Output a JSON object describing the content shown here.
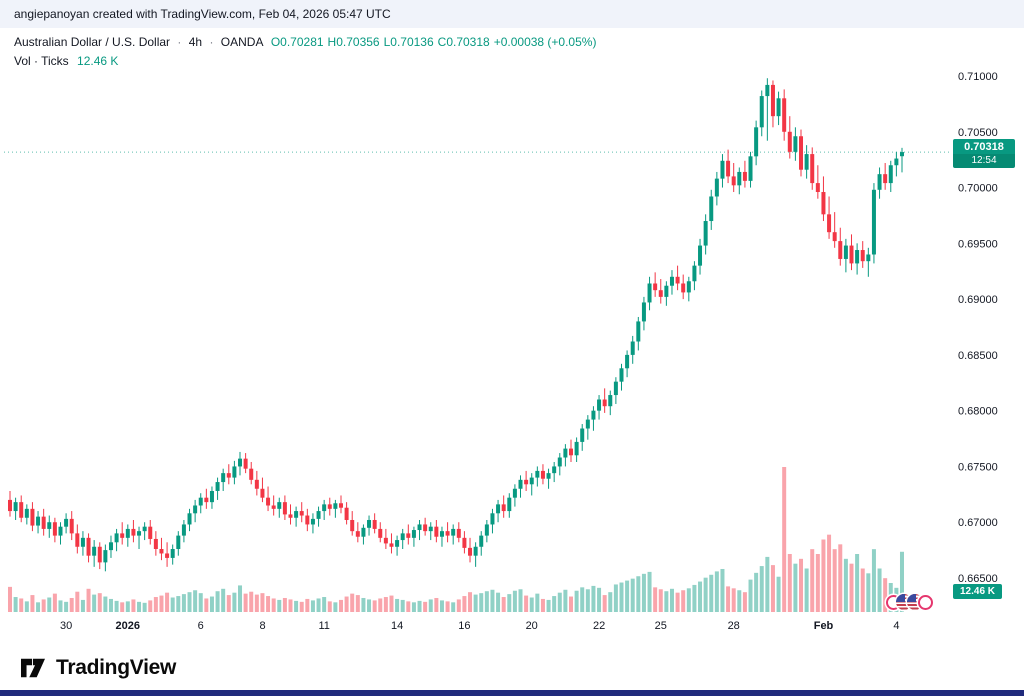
{
  "attribution": "angiepanoyan created with TradingView.com, Feb 04, 2026 05:47 UTC",
  "header": {
    "symbol": "Australian Dollar / U.S. Dollar",
    "separator": "·",
    "interval": "4h",
    "exchange": "OANDA",
    "open": "O0.70281",
    "high": "H0.70356",
    "low": "L0.70136",
    "close": "C0.70318",
    "change": "+0.00038 (+0.05%)",
    "indicator_label": "Vol · Ticks",
    "indicator_value": "12.46 K"
  },
  "badges": {
    "last_price": "0.70318",
    "countdown": "12:54",
    "volume": "12.46 K"
  },
  "footer": {
    "logo_text": "TradingView"
  },
  "icons": {
    "logo_mark": "tradingview-logo-icon",
    "pair_icons": [
      "au-flag-icon",
      "us-flag-icon",
      "us-flag-icon",
      "au-flag-icon"
    ]
  },
  "colors": {
    "up": "#089981",
    "down": "#f23645",
    "vol_up": "rgba(8,153,129,0.45)",
    "vol_down": "rgba(242,54,69,0.45)",
    "accent": "#089981",
    "axis_text": "#131722",
    "topbar_bg": "#f0f3fa",
    "bottom_strip": "#202a7c"
  },
  "chart_data": {
    "type": "candlestick",
    "title": "Australian Dollar / U.S. Dollar",
    "symbol": "AUD/USD",
    "interval": "4h",
    "exchange": "OANDA",
    "last_price": 0.70318,
    "price_line_style": "dotted",
    "legend": "Vol · Ticks 12.46 K",
    "y_axis": {
      "min": 0.665,
      "max": 0.71,
      "ticks": [
        {
          "label": "0.71000",
          "value": 0.71
        },
        {
          "label": "0.70500",
          "value": 0.705
        },
        {
          "label": "0.70000",
          "value": 0.7
        },
        {
          "label": "0.69500",
          "value": 0.695
        },
        {
          "label": "0.69000",
          "value": 0.69
        },
        {
          "label": "0.68500",
          "value": 0.685
        },
        {
          "label": "0.68000",
          "value": 0.68
        },
        {
          "label": "0.67500",
          "value": 0.675
        },
        {
          "label": "0.67000",
          "value": 0.67
        },
        {
          "label": "0.66500",
          "value": 0.665
        }
      ]
    },
    "x_axis": {
      "ticks": [
        {
          "label": "30",
          "i": 10
        },
        {
          "label": "2026",
          "i": 21,
          "major": true
        },
        {
          "label": "6",
          "i": 34
        },
        {
          "label": "8",
          "i": 45
        },
        {
          "label": "11",
          "i": 56
        },
        {
          "label": "14",
          "i": 69
        },
        {
          "label": "16",
          "i": 81
        },
        {
          "label": "20",
          "i": 93
        },
        {
          "label": "22",
          "i": 105
        },
        {
          "label": "25",
          "i": 116
        },
        {
          "label": "28",
          "i": 129
        },
        {
          "label": "Feb",
          "i": 145,
          "major": true
        },
        {
          "label": "4",
          "i": 158
        }
      ]
    },
    "volume_axis": {
      "max": 30,
      "unit": "K",
      "last": "12.46 K"
    },
    "candles": [
      [
        0.672,
        0.6728,
        0.6705,
        0.671,
        5.2
      ],
      [
        0.671,
        0.6722,
        0.6702,
        0.6718,
        3.1
      ],
      [
        0.6718,
        0.6724,
        0.67,
        0.6704,
        2.8
      ],
      [
        0.6704,
        0.6716,
        0.6698,
        0.6712,
        2.2
      ],
      [
        0.6712,
        0.6718,
        0.6692,
        0.6697,
        3.5
      ],
      [
        0.6697,
        0.671,
        0.669,
        0.6705,
        2.0
      ],
      [
        0.6705,
        0.6712,
        0.6688,
        0.6694,
        2.6
      ],
      [
        0.6694,
        0.6706,
        0.6686,
        0.67,
        3.0
      ],
      [
        0.67,
        0.6704,
        0.6682,
        0.6688,
        3.8
      ],
      [
        0.6688,
        0.67,
        0.668,
        0.6696,
        2.4
      ],
      [
        0.6696,
        0.6708,
        0.669,
        0.6703,
        2.1
      ],
      [
        0.6703,
        0.671,
        0.6684,
        0.669,
        2.9
      ],
      [
        0.669,
        0.6698,
        0.6672,
        0.6678,
        4.2
      ],
      [
        0.6678,
        0.6692,
        0.667,
        0.6686,
        2.5
      ],
      [
        0.6686,
        0.669,
        0.6664,
        0.667,
        4.8
      ],
      [
        0.667,
        0.6684,
        0.666,
        0.6678,
        3.6
      ],
      [
        0.6678,
        0.6682,
        0.6658,
        0.6664,
        3.9
      ],
      [
        0.6664,
        0.668,
        0.6656,
        0.6675,
        3.2
      ],
      [
        0.6675,
        0.6688,
        0.6668,
        0.6682,
        2.7
      ],
      [
        0.6682,
        0.6694,
        0.6674,
        0.669,
        2.3
      ],
      [
        0.669,
        0.67,
        0.668,
        0.6686,
        2.0
      ],
      [
        0.6686,
        0.6698,
        0.6678,
        0.6694,
        2.2
      ],
      [
        0.6694,
        0.6702,
        0.6682,
        0.6688,
        2.6
      ],
      [
        0.6688,
        0.6696,
        0.6676,
        0.6692,
        2.1
      ],
      [
        0.6692,
        0.67,
        0.6684,
        0.6696,
        1.9
      ],
      [
        0.6696,
        0.6702,
        0.668,
        0.6685,
        2.4
      ],
      [
        0.6685,
        0.6692,
        0.667,
        0.6676,
        3.1
      ],
      [
        0.6676,
        0.6686,
        0.6666,
        0.6672,
        3.4
      ],
      [
        0.6672,
        0.6682,
        0.666,
        0.6668,
        4.0
      ],
      [
        0.6668,
        0.668,
        0.6662,
        0.6676,
        3.0
      ],
      [
        0.6676,
        0.6692,
        0.667,
        0.6688,
        3.3
      ],
      [
        0.6688,
        0.6702,
        0.6682,
        0.6698,
        3.7
      ],
      [
        0.6698,
        0.6712,
        0.6692,
        0.6708,
        4.1
      ],
      [
        0.6708,
        0.672,
        0.67,
        0.6715,
        4.5
      ],
      [
        0.6715,
        0.6726,
        0.6708,
        0.6722,
        3.9
      ],
      [
        0.6722,
        0.673,
        0.6712,
        0.6718,
        2.8
      ],
      [
        0.6718,
        0.6732,
        0.6712,
        0.6728,
        3.2
      ],
      [
        0.6728,
        0.674,
        0.672,
        0.6736,
        4.3
      ],
      [
        0.6736,
        0.6748,
        0.6728,
        0.6744,
        4.8
      ],
      [
        0.6744,
        0.6752,
        0.6734,
        0.674,
        3.5
      ],
      [
        0.674,
        0.6755,
        0.6734,
        0.675,
        4.0
      ],
      [
        0.675,
        0.6763,
        0.6742,
        0.6757,
        5.5
      ],
      [
        0.6757,
        0.6762,
        0.6744,
        0.6748,
        3.8
      ],
      [
        0.6748,
        0.6754,
        0.6734,
        0.6738,
        4.2
      ],
      [
        0.6738,
        0.6746,
        0.6724,
        0.673,
        3.6
      ],
      [
        0.673,
        0.674,
        0.6718,
        0.6722,
        3.9
      ],
      [
        0.6722,
        0.6732,
        0.671,
        0.6715,
        3.3
      ],
      [
        0.6715,
        0.6724,
        0.6706,
        0.6712,
        2.8
      ],
      [
        0.6712,
        0.6722,
        0.6704,
        0.6718,
        2.5
      ],
      [
        0.6718,
        0.6724,
        0.6702,
        0.6707,
        2.9
      ],
      [
        0.6707,
        0.6716,
        0.6698,
        0.6704,
        2.6
      ],
      [
        0.6704,
        0.6714,
        0.6696,
        0.671,
        2.3
      ],
      [
        0.671,
        0.6718,
        0.67,
        0.6706,
        2.1
      ],
      [
        0.6706,
        0.6712,
        0.6692,
        0.6698,
        2.7
      ],
      [
        0.6698,
        0.6708,
        0.669,
        0.6703,
        2.4
      ],
      [
        0.6703,
        0.6714,
        0.6696,
        0.671,
        2.8
      ],
      [
        0.671,
        0.672,
        0.6702,
        0.6716,
        3.1
      ],
      [
        0.6716,
        0.6722,
        0.6706,
        0.6712,
        2.2
      ],
      [
        0.6712,
        0.672,
        0.6704,
        0.6717,
        2.0
      ],
      [
        0.6717,
        0.6724,
        0.6708,
        0.6713,
        2.5
      ],
      [
        0.6713,
        0.6718,
        0.6698,
        0.6702,
        3.2
      ],
      [
        0.6702,
        0.671,
        0.6688,
        0.6692,
        3.8
      ],
      [
        0.6692,
        0.67,
        0.6682,
        0.6687,
        3.5
      ],
      [
        0.6687,
        0.6698,
        0.668,
        0.6695,
        2.9
      ],
      [
        0.6695,
        0.6706,
        0.6688,
        0.6702,
        2.6
      ],
      [
        0.6702,
        0.6708,
        0.669,
        0.6694,
        2.4
      ],
      [
        0.6694,
        0.67,
        0.6682,
        0.6686,
        2.8
      ],
      [
        0.6686,
        0.6694,
        0.6676,
        0.6681,
        3.1
      ],
      [
        0.6681,
        0.669,
        0.6672,
        0.6678,
        3.4
      ],
      [
        0.6678,
        0.6688,
        0.667,
        0.6684,
        2.7
      ],
      [
        0.6684,
        0.6694,
        0.6676,
        0.669,
        2.5
      ],
      [
        0.669,
        0.6698,
        0.668,
        0.6686,
        2.2
      ],
      [
        0.6686,
        0.6696,
        0.6678,
        0.6693,
        2.0
      ],
      [
        0.6693,
        0.6702,
        0.6684,
        0.6698,
        2.3
      ],
      [
        0.6698,
        0.6704,
        0.6688,
        0.6692,
        2.1
      ],
      [
        0.6692,
        0.67,
        0.6684,
        0.6696,
        2.6
      ],
      [
        0.6696,
        0.6702,
        0.6682,
        0.6687,
        2.9
      ],
      [
        0.6687,
        0.6696,
        0.6678,
        0.6692,
        2.4
      ],
      [
        0.6692,
        0.67,
        0.6682,
        0.6688,
        2.2
      ],
      [
        0.6688,
        0.6698,
        0.668,
        0.6694,
        2.0
      ],
      [
        0.6694,
        0.67,
        0.6682,
        0.6686,
        2.6
      ],
      [
        0.6686,
        0.6692,
        0.6672,
        0.6677,
        3.3
      ],
      [
        0.6677,
        0.6686,
        0.6664,
        0.667,
        4.1
      ],
      [
        0.667,
        0.6682,
        0.666,
        0.6678,
        3.6
      ],
      [
        0.6678,
        0.6692,
        0.667,
        0.6688,
        3.9
      ],
      [
        0.6688,
        0.6702,
        0.6682,
        0.6698,
        4.3
      ],
      [
        0.6698,
        0.6712,
        0.669,
        0.6708,
        4.6
      ],
      [
        0.6708,
        0.672,
        0.67,
        0.6716,
        4.0
      ],
      [
        0.6716,
        0.6724,
        0.6704,
        0.671,
        3.1
      ],
      [
        0.671,
        0.6726,
        0.6704,
        0.6722,
        3.7
      ],
      [
        0.6722,
        0.6734,
        0.6714,
        0.673,
        4.4
      ],
      [
        0.673,
        0.6742,
        0.6722,
        0.6738,
        4.7
      ],
      [
        0.6738,
        0.6746,
        0.6728,
        0.6734,
        3.4
      ],
      [
        0.6734,
        0.6744,
        0.6724,
        0.674,
        3.0
      ],
      [
        0.674,
        0.675,
        0.6732,
        0.6746,
        3.8
      ],
      [
        0.6746,
        0.6752,
        0.6734,
        0.6739,
        2.7
      ],
      [
        0.6739,
        0.6748,
        0.673,
        0.6744,
        2.5
      ],
      [
        0.6744,
        0.6754,
        0.6736,
        0.675,
        3.3
      ],
      [
        0.675,
        0.6762,
        0.6742,
        0.6758,
        4.0
      ],
      [
        0.6758,
        0.677,
        0.675,
        0.6766,
        4.6
      ],
      [
        0.6766,
        0.6774,
        0.6754,
        0.676,
        3.2
      ],
      [
        0.676,
        0.6776,
        0.6754,
        0.6772,
        4.4
      ],
      [
        0.6772,
        0.6788,
        0.6764,
        0.6784,
        5.1
      ],
      [
        0.6784,
        0.6796,
        0.6774,
        0.6792,
        4.7
      ],
      [
        0.6792,
        0.6804,
        0.6782,
        0.68,
        5.4
      ],
      [
        0.68,
        0.6814,
        0.6792,
        0.681,
        5.0
      ],
      [
        0.681,
        0.682,
        0.6798,
        0.6804,
        3.5
      ],
      [
        0.6804,
        0.6818,
        0.6796,
        0.6814,
        4.1
      ],
      [
        0.6814,
        0.683,
        0.6806,
        0.6826,
        5.7
      ],
      [
        0.6826,
        0.6842,
        0.6818,
        0.6838,
        6.1
      ],
      [
        0.6838,
        0.6854,
        0.683,
        0.685,
        6.5
      ],
      [
        0.685,
        0.6867,
        0.6842,
        0.6862,
        6.9
      ],
      [
        0.6862,
        0.6884,
        0.6854,
        0.688,
        7.4
      ],
      [
        0.688,
        0.6902,
        0.6872,
        0.6897,
        7.9
      ],
      [
        0.6897,
        0.692,
        0.689,
        0.6914,
        8.3
      ],
      [
        0.6914,
        0.6924,
        0.6902,
        0.6908,
        5.1
      ],
      [
        0.6908,
        0.6918,
        0.6896,
        0.6902,
        4.7
      ],
      [
        0.6902,
        0.6916,
        0.6894,
        0.6912,
        4.3
      ],
      [
        0.6912,
        0.6926,
        0.6904,
        0.692,
        4.8
      ],
      [
        0.692,
        0.693,
        0.6908,
        0.6914,
        4.0
      ],
      [
        0.6914,
        0.6922,
        0.69,
        0.6906,
        4.5
      ],
      [
        0.6906,
        0.692,
        0.6898,
        0.6916,
        4.9
      ],
      [
        0.6916,
        0.6934,
        0.6908,
        0.693,
        5.6
      ],
      [
        0.693,
        0.6954,
        0.6922,
        0.6948,
        6.3
      ],
      [
        0.6948,
        0.6976,
        0.694,
        0.697,
        7.1
      ],
      [
        0.697,
        0.6998,
        0.6962,
        0.6992,
        7.7
      ],
      [
        0.6992,
        0.7014,
        0.6984,
        0.7008,
        8.4
      ],
      [
        0.7008,
        0.703,
        0.7,
        0.7024,
        8.9
      ],
      [
        0.7024,
        0.7034,
        0.7004,
        0.701,
        5.3
      ],
      [
        0.701,
        0.7022,
        0.6996,
        0.7002,
        4.9
      ],
      [
        0.7002,
        0.7018,
        0.6994,
        0.7014,
        4.5
      ],
      [
        0.7014,
        0.7024,
        0.7,
        0.7006,
        4.1
      ],
      [
        0.7006,
        0.7032,
        0.7,
        0.7028,
        6.7
      ],
      [
        0.7028,
        0.706,
        0.702,
        0.7054,
        8.1
      ],
      [
        0.7054,
        0.7087,
        0.7046,
        0.7082,
        9.5
      ],
      [
        0.7082,
        0.7098,
        0.7042,
        0.7092,
        11.4
      ],
      [
        0.7092,
        0.7096,
        0.7054,
        0.7064,
        9.7
      ],
      [
        0.7064,
        0.7086,
        0.7056,
        0.708,
        7.3
      ],
      [
        0.708,
        0.7088,
        0.7042,
        0.705,
        30.0
      ],
      [
        0.705,
        0.7064,
        0.7026,
        0.7032,
        12.0
      ],
      [
        0.7032,
        0.7054,
        0.7024,
        0.7046,
        10.0
      ],
      [
        0.7046,
        0.7052,
        0.701,
        0.7016,
        11.0
      ],
      [
        0.7016,
        0.7038,
        0.7008,
        0.703,
        9.0
      ],
      [
        0.703,
        0.7036,
        0.6998,
        0.7004,
        13.0
      ],
      [
        0.7004,
        0.702,
        0.699,
        0.6996,
        12.0
      ],
      [
        0.6996,
        0.701,
        0.697,
        0.6976,
        15.0
      ],
      [
        0.6976,
        0.6992,
        0.6954,
        0.696,
        16.0
      ],
      [
        0.696,
        0.6978,
        0.6946,
        0.6952,
        13.0
      ],
      [
        0.6952,
        0.6964,
        0.693,
        0.6936,
        14.0
      ],
      [
        0.6936,
        0.6954,
        0.6924,
        0.6948,
        11.0
      ],
      [
        0.6948,
        0.6958,
        0.6926,
        0.6932,
        10.0
      ],
      [
        0.6932,
        0.695,
        0.6922,
        0.6944,
        12.0
      ],
      [
        0.6944,
        0.6952,
        0.6928,
        0.6934,
        9.0
      ],
      [
        0.6934,
        0.6946,
        0.692,
        0.694,
        8.0
      ],
      [
        0.694,
        0.7004,
        0.6932,
        0.6998,
        13.0
      ],
      [
        0.6998,
        0.7018,
        0.699,
        0.7012,
        9.0
      ],
      [
        0.7012,
        0.7022,
        0.6998,
        0.7004,
        7.0
      ],
      [
        0.7004,
        0.7024,
        0.6996,
        0.702,
        6.0
      ],
      [
        0.702,
        0.7032,
        0.701,
        0.7026,
        5.0
      ],
      [
        0.70281,
        0.70356,
        0.70136,
        0.70318,
        12.46
      ]
    ]
  }
}
